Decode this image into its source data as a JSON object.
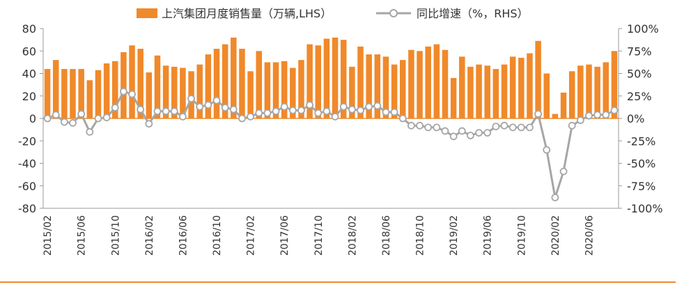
{
  "chart_data": {
    "type": "bar+line",
    "legend": {
      "bar_label": "上汽集团月度销售量（万辆,LHS）",
      "line_label": "同比增速（%，RHS）",
      "placement": "top-center"
    },
    "colors": {
      "bar": "#F0892A",
      "line": "#A6A6A6",
      "marker_fill": "#ffffff",
      "baseline": "#F0892A",
      "axis": "#999999"
    },
    "y_left": {
      "ylim": [
        -80,
        80
      ],
      "ticks": [
        80,
        60,
        40,
        20,
        0,
        -20,
        -40,
        -60,
        -80
      ],
      "tick_labels": [
        "80",
        "60",
        "40",
        "20",
        "0",
        "-20",
        "-40",
        "-60",
        "-80"
      ]
    },
    "y_right": {
      "ylim": [
        -100,
        100
      ],
      "ticks": [
        100,
        75,
        50,
        25,
        0,
        -25,
        -50,
        -75,
        -100
      ],
      "tick_labels": [
        "100%",
        "75%",
        "50%",
        "25%",
        "0%",
        "-25%",
        "-50%",
        "-75%",
        "-100%"
      ]
    },
    "x_tick_labels": [
      {
        "index": 0,
        "label": "2015/02"
      },
      {
        "index": 4,
        "label": "2015/06"
      },
      {
        "index": 8,
        "label": "2015/10"
      },
      {
        "index": 12,
        "label": "2016/02"
      },
      {
        "index": 16,
        "label": "2016/06"
      },
      {
        "index": 20,
        "label": "2016/10"
      },
      {
        "index": 24,
        "label": "2017/02"
      },
      {
        "index": 28,
        "label": "2017/06"
      },
      {
        "index": 32,
        "label": "2017/10"
      },
      {
        "index": 36,
        "label": "2018/02"
      },
      {
        "index": 40,
        "label": "2018/06"
      },
      {
        "index": 44,
        "label": "2018/10"
      },
      {
        "index": 48,
        "label": "2019/02"
      },
      {
        "index": 52,
        "label": "2019/06"
      },
      {
        "index": 56,
        "label": "2019/10"
      },
      {
        "index": 60,
        "label": "2020/02"
      },
      {
        "index": 64,
        "label": "2020/06"
      }
    ],
    "series": [
      {
        "name": "上汽集团月度销售量（万辆,LHS）",
        "axis": "left",
        "kind": "bar",
        "values": [
          44,
          52,
          44,
          44,
          44,
          34,
          43,
          49,
          51,
          59,
          65,
          62,
          41,
          56,
          47,
          46,
          45,
          42,
          48,
          57,
          62,
          66,
          72,
          62,
          42,
          60,
          50,
          50,
          51,
          45,
          52,
          66,
          65,
          71,
          72,
          70,
          46,
          64,
          57,
          57,
          55,
          48,
          52,
          61,
          60,
          64,
          66,
          61,
          36,
          55,
          46,
          48,
          47,
          44,
          48,
          55,
          54,
          58,
          69,
          40,
          4,
          23,
          42,
          47,
          48,
          46,
          50,
          60
        ]
      },
      {
        "name": "同比增速（%，RHS）",
        "axis": "right",
        "kind": "line",
        "values": [
          0,
          4,
          -4,
          -5,
          5,
          -15,
          0,
          1,
          12,
          30,
          27,
          10,
          -6,
          8,
          8,
          8,
          2,
          22,
          13,
          15,
          20,
          12,
          10,
          0,
          2,
          6,
          6,
          8,
          13,
          9,
          9,
          15,
          6,
          8,
          2,
          13,
          10,
          9,
          13,
          14,
          7,
          7,
          0,
          -8,
          -8,
          -10,
          -10,
          -14,
          -20,
          -14,
          -19,
          -16,
          -16,
          -9,
          -8,
          -10,
          -10,
          -10,
          5,
          -35,
          -88,
          -59,
          -8,
          -2,
          3,
          4,
          4,
          9
        ]
      }
    ]
  }
}
